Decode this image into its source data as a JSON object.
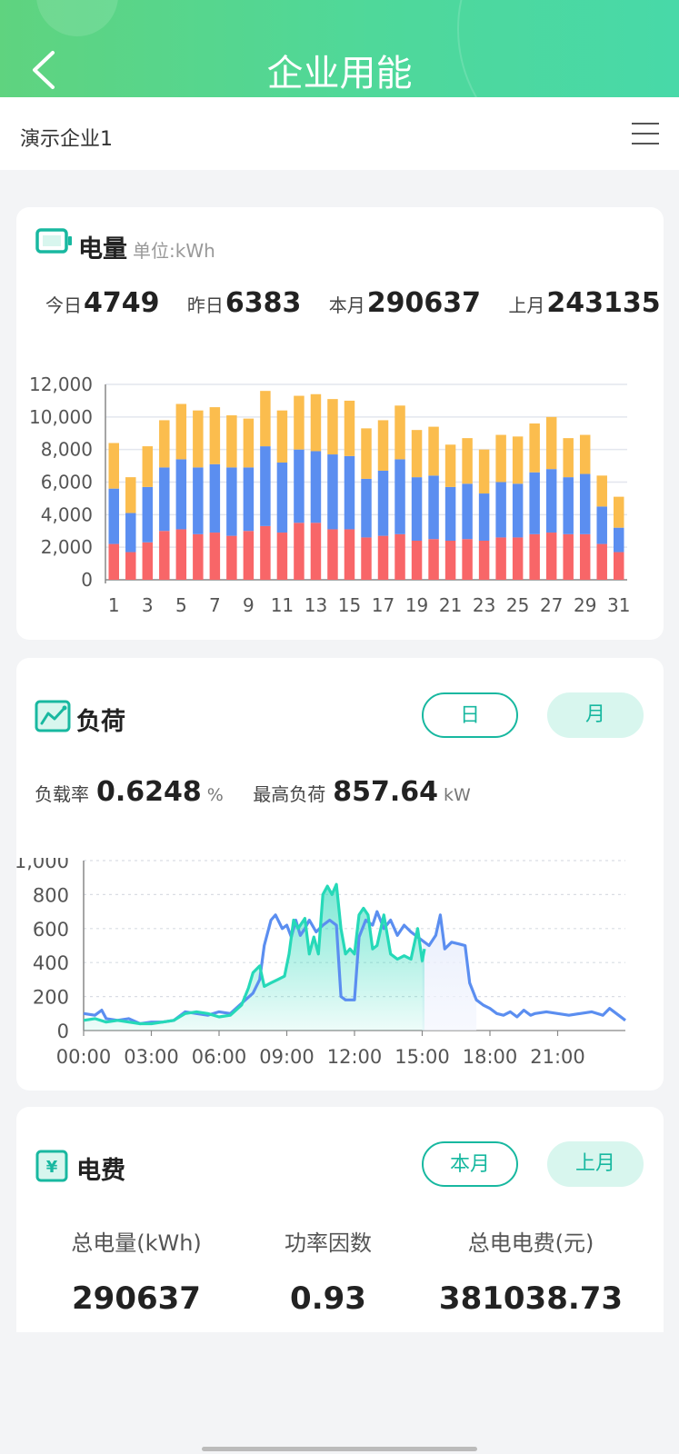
{
  "header": {
    "title": "企业用能",
    "back_icon": "chevron-left-icon"
  },
  "subbar": {
    "company": "演示企业1",
    "menu_icon": "hamburger-menu-icon"
  },
  "energy": {
    "title": "电量",
    "unit": "单位:kWh",
    "stats": [
      {
        "label": "今日",
        "value": "4749"
      },
      {
        "label": "昨日",
        "value": "6383"
      },
      {
        "label": "本月",
        "value": "290637"
      },
      {
        "label": "上月",
        "value": "243135"
      }
    ]
  },
  "load": {
    "title": "负荷",
    "tabs": [
      "日",
      "月"
    ],
    "rate_label": "负载率",
    "rate_value": "0.6248",
    "rate_unit": "%",
    "peak_label": "最高负荷",
    "peak_value": "857.64",
    "peak_unit": "kW"
  },
  "fee": {
    "title": "电费",
    "tabs": [
      "本月",
      "上月"
    ],
    "items": [
      {
        "label": "总电量(kWh)",
        "value": "290637"
      },
      {
        "label": "功率因数",
        "value": "0.93"
      },
      {
        "label": "总电电费(元)",
        "value": "381038.73"
      }
    ]
  },
  "colors": {
    "accent": "#18b8a0",
    "peak": "#fbbd4e",
    "flat": "#5b8ef0",
    "valley": "#f86668",
    "line1": "#5b8ef0",
    "line2": "#26d9b8"
  },
  "chart_data": [
    {
      "type": "bar",
      "stacked": true,
      "categories": [
        "1",
        "2",
        "3",
        "4",
        "5",
        "6",
        "7",
        "8",
        "9",
        "10",
        "11",
        "12",
        "13",
        "14",
        "15",
        "16",
        "17",
        "18",
        "19",
        "20",
        "21",
        "22",
        "23",
        "24",
        "25",
        "26",
        "27",
        "28",
        "29",
        "30",
        "31"
      ],
      "x_tick_labels": [
        "1",
        "3",
        "5",
        "7",
        "9",
        "11",
        "13",
        "15",
        "17",
        "19",
        "21",
        "23",
        "25",
        "27",
        "29",
        "31"
      ],
      "y_ticks": [
        "0",
        "2,000",
        "4,000",
        "6,000",
        "8,000",
        "10,000",
        "12,000"
      ],
      "ylim": [
        0,
        12000
      ],
      "series": [
        {
          "values": [
            2200,
            1700,
            2300,
            3000,
            3100,
            2800,
            2900,
            2700,
            3000,
            3300,
            2900,
            3500,
            3500,
            3100,
            3100,
            2600,
            2700,
            2800,
            2400,
            2500,
            2400,
            2500,
            2400,
            2600,
            2600,
            2800,
            2900,
            2800,
            2800,
            2200,
            1700
          ]
        },
        {
          "values": [
            3400,
            2400,
            3400,
            3900,
            4300,
            4100,
            4200,
            4200,
            3900,
            4900,
            4300,
            4500,
            4400,
            4600,
            4500,
            3600,
            4000,
            4600,
            3900,
            3900,
            3300,
            3400,
            2900,
            3400,
            3300,
            3800,
            3900,
            3500,
            3700,
            2300,
            1500
          ]
        },
        {
          "values": [
            2800,
            2200,
            2500,
            2900,
            3400,
            3500,
            3500,
            3200,
            3000,
            3400,
            3200,
            3300,
            3500,
            3400,
            3400,
            3100,
            3100,
            3300,
            2900,
            3000,
            2600,
            2800,
            2700,
            2900,
            2900,
            3000,
            3200,
            2400,
            2400,
            1900,
            1900
          ]
        }
      ],
      "grid": true
    },
    {
      "type": "line",
      "x_tick_labels": [
        "00:00",
        "03:00",
        "06:00",
        "09:00",
        "12:00",
        "15:00",
        "18:00",
        "21:00"
      ],
      "y_ticks": [
        "0",
        "200",
        "400",
        "600",
        "800",
        "1,000"
      ],
      "ylim": [
        0,
        1000
      ],
      "x_range_hours": [
        0,
        24
      ],
      "series": [
        {
          "points": [
            [
              0,
              100
            ],
            [
              0.5,
              90
            ],
            [
              0.8,
              120
            ],
            [
              1,
              70
            ],
            [
              1.5,
              60
            ],
            [
              2,
              70
            ],
            [
              2.5,
              40
            ],
            [
              3,
              50
            ],
            [
              3.5,
              50
            ],
            [
              4,
              60
            ],
            [
              4.5,
              110
            ],
            [
              5,
              100
            ],
            [
              5.5,
              90
            ],
            [
              6,
              110
            ],
            [
              6.5,
              100
            ],
            [
              7,
              160
            ],
            [
              7.5,
              220
            ],
            [
              7.8,
              300
            ],
            [
              8,
              500
            ],
            [
              8.3,
              650
            ],
            [
              8.5,
              680
            ],
            [
              8.8,
              600
            ],
            [
              9,
              620
            ],
            [
              9.2,
              550
            ],
            [
              9.4,
              650
            ],
            [
              9.6,
              560
            ],
            [
              9.8,
              600
            ],
            [
              10,
              650
            ],
            [
              10.3,
              580
            ],
            [
              10.6,
              620
            ],
            [
              10.9,
              650
            ],
            [
              11.2,
              620
            ],
            [
              11.4,
              200
            ],
            [
              11.6,
              180
            ],
            [
              12,
              180
            ],
            [
              12.2,
              550
            ],
            [
              12.5,
              650
            ],
            [
              12.8,
              620
            ],
            [
              13,
              700
            ],
            [
              13.3,
              600
            ],
            [
              13.6,
              650
            ],
            [
              13.9,
              560
            ],
            [
              14.2,
              620
            ],
            [
              14.5,
              580
            ],
            [
              14.8,
              550
            ],
            [
              15,
              530
            ],
            [
              15.3,
              500
            ],
            [
              15.6,
              560
            ],
            [
              15.8,
              680
            ],
            [
              16,
              480
            ],
            [
              16.3,
              520
            ],
            [
              16.6,
              510
            ],
            [
              16.9,
              500
            ],
            [
              17.1,
              280
            ],
            [
              17.4,
              180
            ],
            [
              17.7,
              150
            ],
            [
              18,
              130
            ],
            [
              18.3,
              100
            ],
            [
              18.6,
              90
            ],
            [
              18.9,
              110
            ],
            [
              19.2,
              80
            ],
            [
              19.5,
              120
            ],
            [
              19.8,
              90
            ],
            [
              20,
              100
            ],
            [
              20.5,
              110
            ],
            [
              21,
              100
            ],
            [
              21.5,
              90
            ],
            [
              22,
              100
            ],
            [
              22.5,
              110
            ],
            [
              23,
              90
            ],
            [
              23.3,
              130
            ],
            [
              23.6,
              100
            ],
            [
              24,
              60
            ]
          ]
        },
        {
          "points": [
            [
              0,
              60
            ],
            [
              0.5,
              70
            ],
            [
              1,
              50
            ],
            [
              1.5,
              60
            ],
            [
              2,
              50
            ],
            [
              2.5,
              40
            ],
            [
              3,
              40
            ],
            [
              3.5,
              50
            ],
            [
              4,
              60
            ],
            [
              4.5,
              100
            ],
            [
              5,
              110
            ],
            [
              5.5,
              100
            ],
            [
              6,
              80
            ],
            [
              6.5,
              90
            ],
            [
              7,
              150
            ],
            [
              7.3,
              250
            ],
            [
              7.5,
              340
            ],
            [
              7.8,
              380
            ],
            [
              8,
              260
            ],
            [
              8.3,
              280
            ],
            [
              8.6,
              300
            ],
            [
              8.9,
              320
            ],
            [
              9.1,
              450
            ],
            [
              9.3,
              650
            ],
            [
              9.5,
              600
            ],
            [
              9.8,
              660
            ],
            [
              10,
              450
            ],
            [
              10.2,
              550
            ],
            [
              10.4,
              450
            ],
            [
              10.6,
              800
            ],
            [
              10.8,
              850
            ],
            [
              11,
              800
            ],
            [
              11.2,
              860
            ],
            [
              11.4,
              600
            ],
            [
              11.6,
              450
            ],
            [
              11.8,
              480
            ],
            [
              12,
              450
            ],
            [
              12.2,
              680
            ],
            [
              12.4,
              720
            ],
            [
              12.6,
              680
            ],
            [
              12.8,
              480
            ],
            [
              13,
              500
            ],
            [
              13.3,
              680
            ],
            [
              13.6,
              450
            ],
            [
              13.9,
              420
            ],
            [
              14.2,
              440
            ],
            [
              14.5,
              420
            ],
            [
              14.8,
              600
            ],
            [
              15,
              410
            ],
            [
              15.1,
              480
            ]
          ]
        }
      ],
      "grid": true
    }
  ]
}
